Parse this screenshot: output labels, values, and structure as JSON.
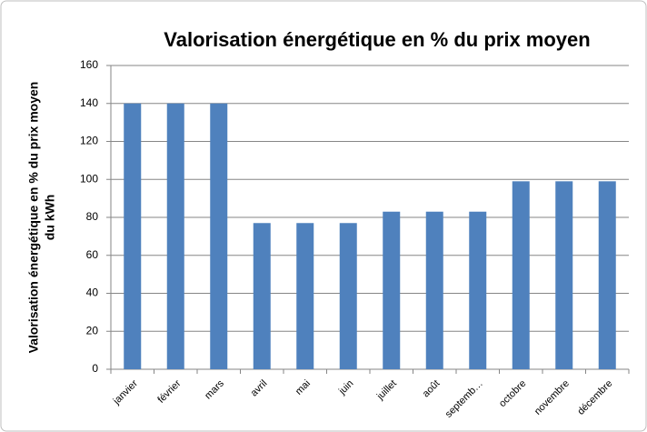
{
  "chart_data": {
    "type": "bar",
    "title": "Valorisation énergétique en % du prix moyen",
    "ylabel": [
      "Valorisation énergétique en % du prix moyen",
      "du kWh"
    ],
    "categories": [
      "janvier",
      "février",
      "mars",
      "avril",
      "mai",
      "juin",
      "juillet",
      "août",
      "septemb…",
      "octobre",
      "novembre",
      "décembre"
    ],
    "values": [
      140,
      140,
      140,
      77,
      77,
      77,
      83,
      83,
      83,
      99,
      99,
      99
    ],
    "color": "#4f81bd",
    "ylim": [
      0,
      160
    ],
    "yticks": [
      0,
      20,
      40,
      60,
      80,
      100,
      120,
      140,
      160
    ],
    "grid": true
  }
}
